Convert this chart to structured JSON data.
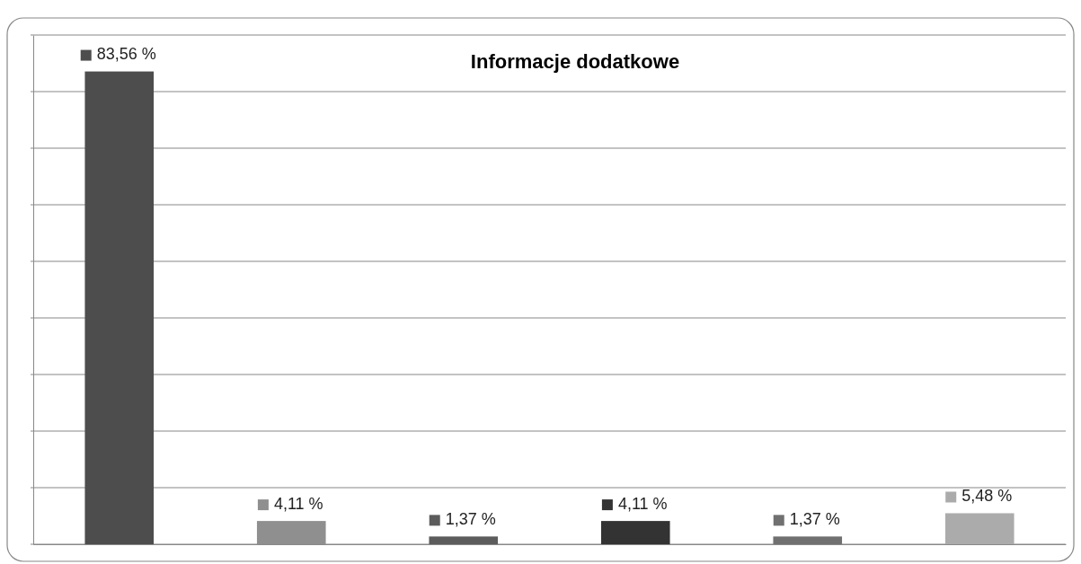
{
  "chart_data": {
    "type": "bar",
    "title": "Informacje dodatkowe",
    "categories": [
      null,
      null,
      null,
      null,
      null,
      null
    ],
    "values": [
      83.56,
      4.11,
      1.37,
      4.11,
      1.37,
      5.48
    ],
    "colors": [
      "#4d4d4d",
      "#8f8f8f",
      "#5c5c5c",
      "#333333",
      "#707070",
      "#ababab"
    ],
    "value_labels": [
      "83,56 %",
      "4,11 %",
      "1,37 %",
      "4,11 %",
      "1,37 %",
      "5,48 %"
    ],
    "ylim": [
      0,
      90
    ],
    "yticks": [
      {
        "value": 0,
        "label": null
      },
      {
        "value": 10,
        "label": null
      },
      {
        "value": 20,
        "label": null
      },
      {
        "value": 30,
        "label": null
      },
      {
        "value": 40,
        "label": null
      },
      {
        "value": 50,
        "label": null
      },
      {
        "value": 60,
        "label": null
      },
      {
        "value": 70,
        "label": null
      },
      {
        "value": 80,
        "label": null
      },
      {
        "value": 90,
        "label": null
      }
    ],
    "grid": "y"
  }
}
